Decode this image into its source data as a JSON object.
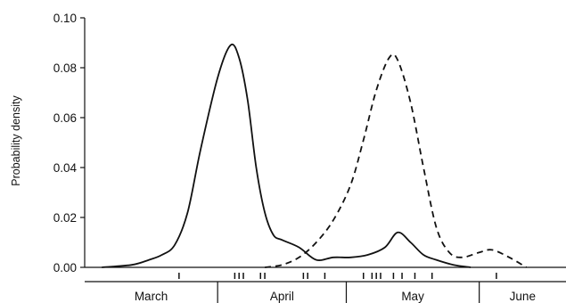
{
  "chart_data": {
    "type": "line",
    "title": "",
    "ylabel": "Probability density",
    "xlabel": "",
    "ylim": [
      0,
      0.1
    ],
    "xlim": [
      "1995-03-01",
      "1995-06-30"
    ],
    "yticks": [
      "0.00",
      "0.02",
      "0.04",
      "0.06",
      "0.08",
      "0.10"
    ],
    "months": [
      {
        "label": "March",
        "start": "1995-03-01",
        "end": "1995-03-31"
      },
      {
        "label": "April",
        "start": "1995-04-01",
        "end": "1995-04-30"
      },
      {
        "label": "May",
        "start": "1995-05-01",
        "end": "1995-05-31"
      },
      {
        "label": "June",
        "start": "1995-06-01",
        "end": "1995-06-30"
      }
    ],
    "legend": "none",
    "grid": false,
    "series": [
      {
        "style": "solid",
        "x": [
          "1995-03-05",
          "1995-03-12",
          "1995-03-16",
          "1995-03-19",
          "1995-03-22",
          "1995-03-25",
          "1995-03-28",
          "1995-04-01",
          "1995-04-04",
          "1995-04-06",
          "1995-04-08",
          "1995-04-10",
          "1995-04-12",
          "1995-04-14",
          "1995-04-16",
          "1995-04-20",
          "1995-04-24",
          "1995-04-28",
          "1995-05-02",
          "1995-05-06",
          "1995-05-10",
          "1995-05-13",
          "1995-05-16",
          "1995-05-19",
          "1995-05-22",
          "1995-05-26",
          "1995-05-30"
        ],
        "y": [
          0.0,
          0.001,
          0.003,
          0.005,
          0.009,
          0.022,
          0.047,
          0.076,
          0.089,
          0.084,
          0.067,
          0.04,
          0.022,
          0.013,
          0.011,
          0.008,
          0.003,
          0.004,
          0.004,
          0.005,
          0.008,
          0.014,
          0.01,
          0.005,
          0.003,
          0.001,
          0.0
        ]
      },
      {
        "style": "dashed",
        "x": [
          "1995-04-12",
          "1995-04-16",
          "1995-04-20",
          "1995-04-24",
          "1995-04-28",
          "1995-05-02",
          "1995-05-05",
          "1995-05-08",
          "1995-05-11",
          "1995-05-13",
          "1995-05-16",
          "1995-05-19",
          "1995-05-22",
          "1995-05-25",
          "1995-05-28",
          "1995-06-01",
          "1995-06-04",
          "1995-06-08",
          "1995-06-12"
        ],
        "y": [
          0.0,
          0.001,
          0.004,
          0.01,
          0.019,
          0.033,
          0.051,
          0.071,
          0.084,
          0.083,
          0.066,
          0.04,
          0.016,
          0.006,
          0.004,
          0.006,
          0.007,
          0.004,
          0.0
        ]
      }
    ],
    "rug": [
      "1995-03-23",
      "1995-04-05",
      "1995-04-06",
      "1995-04-07",
      "1995-04-11",
      "1995-04-12",
      "1995-04-21",
      "1995-04-22",
      "1995-04-26",
      "1995-05-05",
      "1995-05-07",
      "1995-05-08",
      "1995-05-09",
      "1995-05-12",
      "1995-05-14",
      "1995-05-17",
      "1995-05-21",
      "1995-06-05"
    ]
  }
}
